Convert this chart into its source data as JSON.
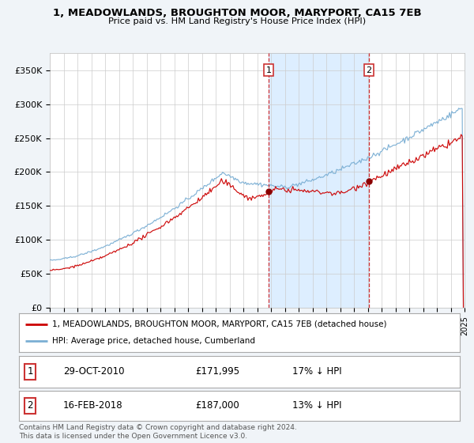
{
  "title1": "1, MEADOWLANDS, BROUGHTON MOOR, MARYPORT, CA15 7EB",
  "title2": "Price paid vs. HM Land Registry's House Price Index (HPI)",
  "ylabel_ticks": [
    "£0",
    "£50K",
    "£100K",
    "£150K",
    "£200K",
    "£250K",
    "£300K",
    "£350K"
  ],
  "ytick_vals": [
    0,
    50000,
    100000,
    150000,
    200000,
    250000,
    300000,
    350000
  ],
  "ylim": [
    0,
    375000
  ],
  "hpi_color": "#7bafd4",
  "price_color": "#cc0000",
  "shade_color": "#ddeeff",
  "ann1_year": 2010.833,
  "ann1_price": 171995,
  "ann2_year": 2018.083,
  "ann2_price": 187000,
  "legend1": "1, MEADOWLANDS, BROUGHTON MOOR, MARYPORT, CA15 7EB (detached house)",
  "legend2": "HPI: Average price, detached house, Cumberland",
  "footer": "Contains HM Land Registry data © Crown copyright and database right 2024.\nThis data is licensed under the Open Government Licence v3.0.",
  "fig_bg": "#f0f4f8",
  "plot_bg": "#ffffff",
  "grid_color": "#cccccc"
}
